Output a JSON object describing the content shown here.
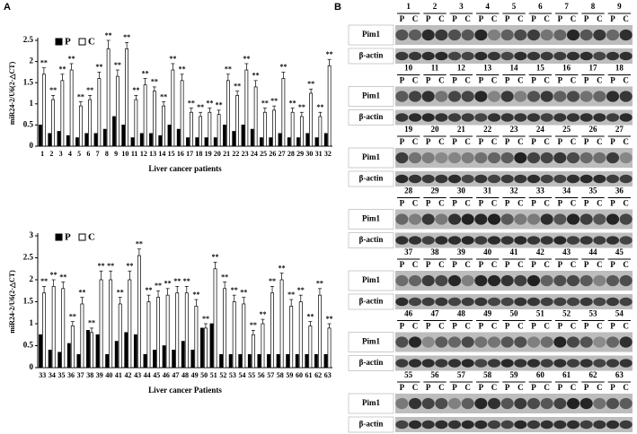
{
  "panel_labels": [
    "A",
    "B"
  ],
  "chart_data": [
    {
      "type": "bar",
      "ylabel": "miR24-2/U6(2-△CT)",
      "xlabel": "Liver cancer patients",
      "categories": [
        1,
        2,
        3,
        4,
        5,
        6,
        7,
        8,
        9,
        10,
        11,
        12,
        13,
        14,
        15,
        16,
        17,
        18,
        19,
        20,
        21,
        22,
        23,
        24,
        25,
        26,
        27,
        28,
        29,
        30,
        31,
        32
      ],
      "series": [
        {
          "name": "P",
          "color": "#000000",
          "values": [
            0.5,
            0.3,
            0.35,
            0.25,
            0.2,
            0.3,
            0.3,
            0.4,
            0.7,
            0.5,
            0.2,
            0.3,
            0.3,
            0.25,
            0.5,
            0.4,
            0.2,
            0.2,
            0.2,
            0.2,
            0.5,
            0.35,
            0.5,
            0.4,
            0.2,
            0.2,
            0.3,
            0.2,
            0.2,
            0.3,
            0.2,
            0.3
          ]
        },
        {
          "name": "C",
          "color": "#ffffff",
          "values": [
            1.7,
            1.1,
            1.55,
            1.8,
            0.95,
            1.1,
            1.6,
            2.3,
            1.65,
            2.3,
            1.1,
            1.45,
            1.3,
            0.95,
            1.8,
            1.55,
            0.8,
            0.7,
            0.8,
            0.75,
            1.55,
            1.2,
            1.8,
            1.4,
            0.8,
            0.85,
            1.6,
            0.8,
            0.7,
            1.25,
            0.7,
            1.9
          ],
          "errors": [
            0.15,
            0.1,
            0.15,
            0.15,
            0.1,
            0.1,
            0.15,
            0.2,
            0.15,
            0.15,
            0.1,
            0.15,
            0.1,
            0.1,
            0.15,
            0.15,
            0.1,
            0.1,
            0.1,
            0.1,
            0.15,
            0.1,
            0.15,
            0.15,
            0.1,
            0.1,
            0.15,
            0.1,
            0.1,
            0.1,
            0.1,
            0.15
          ]
        }
      ],
      "annotation": "**",
      "ylim": [
        0,
        2.5
      ],
      "yticks": [
        0,
        0.5,
        1,
        1.5,
        2,
        2.5
      ],
      "legend": "upper left"
    },
    {
      "type": "bar",
      "ylabel": "miR24-2/U6(2-△CT)",
      "xlabel": "Liver cancer Patients",
      "categories": [
        33,
        34,
        35,
        36,
        37,
        38,
        39,
        40,
        41,
        42,
        43,
        44,
        45,
        46,
        47,
        48,
        49,
        50,
        51,
        52,
        53,
        54,
        55,
        56,
        57,
        58,
        59,
        60,
        61,
        62,
        63
      ],
      "series": [
        {
          "name": "P",
          "color": "#000000",
          "values": [
            0.75,
            0.4,
            0.35,
            0.55,
            0.3,
            0.85,
            0.75,
            0.3,
            0.6,
            0.8,
            0.75,
            0.3,
            0.4,
            0.5,
            0.4,
            0.6,
            0.4,
            0.9,
            1.0,
            0.3,
            0.3,
            0.3,
            0.3,
            0.3,
            0.3,
            0.3,
            0.3,
            0.3,
            0.3,
            0.3,
            0.3
          ]
        },
        {
          "name": "C",
          "color": "#ffffff",
          "values": [
            1.7,
            1.85,
            1.8,
            0.95,
            1.45,
            0.8,
            2.0,
            2.0,
            1.45,
            2.0,
            2.55,
            1.5,
            1.6,
            1.65,
            1.7,
            1.7,
            1.4,
            0.9,
            2.25,
            1.8,
            1.5,
            1.45,
            0.75,
            1.0,
            1.7,
            2.0,
            1.4,
            1.5,
            0.95,
            1.65,
            0.9
          ],
          "errors": [
            0.15,
            0.15,
            0.15,
            0.1,
            0.15,
            0.1,
            0.2,
            0.2,
            0.15,
            0.2,
            0.15,
            0.15,
            0.15,
            0.15,
            0.15,
            0.15,
            0.15,
            0.1,
            0.15,
            0.15,
            0.15,
            0.15,
            0.1,
            0.1,
            0.15,
            0.15,
            0.15,
            0.15,
            0.1,
            0.15,
            0.1
          ]
        }
      ],
      "annotation": "**",
      "ylim": [
        0,
        3
      ],
      "yticks": [
        0,
        0.5,
        1,
        1.5,
        2,
        2.5,
        3
      ],
      "legend": "upper left"
    }
  ],
  "blots": {
    "lane_labels": [
      "P",
      "C"
    ],
    "rows": [
      "Pim1",
      "β-actin"
    ],
    "groups": [
      [
        1,
        2,
        3,
        4,
        5,
        6,
        7,
        8,
        9
      ],
      [
        10,
        11,
        12,
        13,
        14,
        15,
        16,
        17,
        18
      ],
      [
        19,
        20,
        21,
        22,
        23,
        24,
        25,
        26,
        27
      ],
      [
        28,
        29,
        30,
        31,
        32,
        33,
        34,
        35,
        36
      ],
      [
        37,
        38,
        39,
        40,
        41,
        42,
        43,
        44,
        45
      ],
      [
        46,
        47,
        48,
        49,
        50,
        51,
        52,
        53,
        54
      ],
      [
        55,
        56,
        57,
        58,
        59,
        60,
        61,
        62,
        63
      ]
    ]
  }
}
